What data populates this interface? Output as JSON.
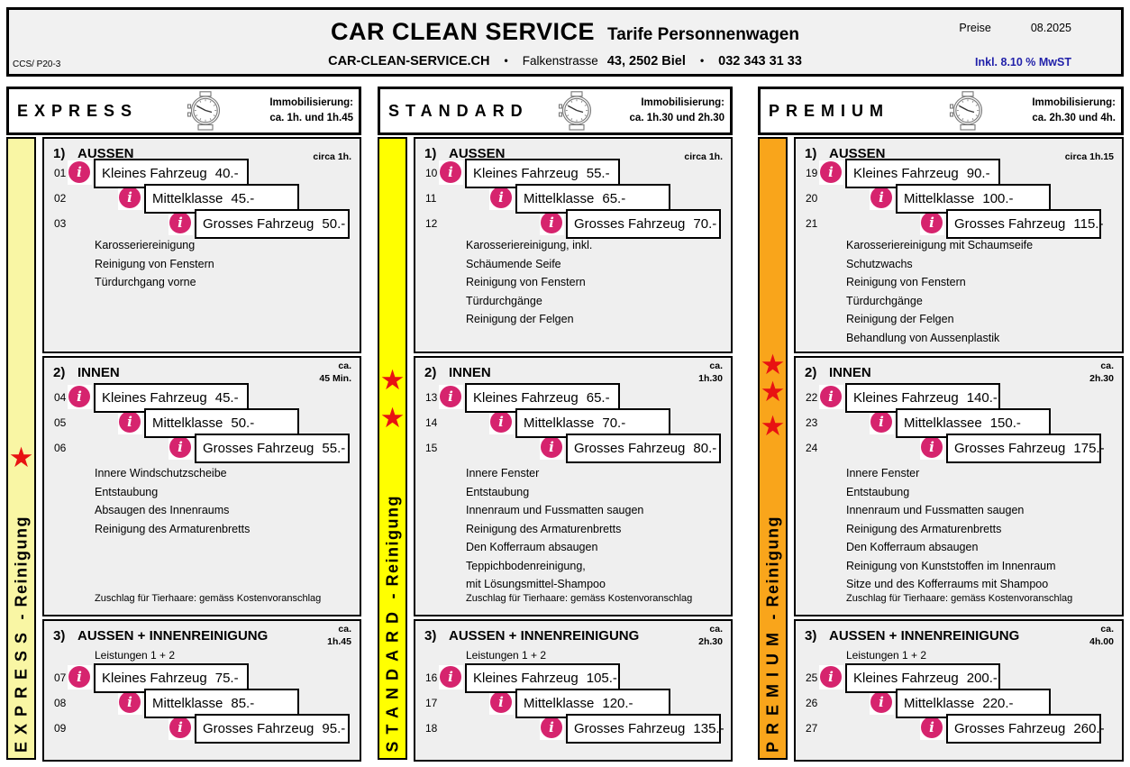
{
  "header": {
    "code": "CCS/ P20-3",
    "title": "CAR CLEAN SERVICE",
    "subtitle": "Tarife Personnenwagen",
    "website": "CAR-CLEAN-SERVICE.CH",
    "bullet": "•",
    "street": "Falkenstrasse",
    "address": "43, 2502 Biel",
    "phone": "032 343 31 33",
    "price_label": "Preise",
    "price_date": "08.2025",
    "vat_note": "Inkl. 8.10 % MwST"
  },
  "icons": {
    "info": "i",
    "star": "★"
  },
  "colors": {
    "info_icon": "#D6246E",
    "star": "#E81212",
    "vat_text": "#2222AA",
    "header_bg": "#F1F1F1",
    "section_bg": "#EFEFEF",
    "express_bar": "#F9F6A4",
    "standard_bar": "#FFFF00",
    "premium_bar": "#F9A51B"
  },
  "panels": [
    {
      "id": "express",
      "title": "EXPRESS",
      "immob_label": "Immobilisierung:",
      "immob_time": "ca. 1h. und 1h.45",
      "sidebar": {
        "brand": "EXPRESS",
        "suffix": " - Reinigung",
        "color": "#F9F6A4",
        "stars": 1
      },
      "sections": [
        {
          "no": "1)",
          "name": "AUSSEN",
          "ca": "",
          "duration": "circa 1h.",
          "rows": [
            {
              "nr": "01",
              "vehicle": "Kleines Fahrzeug",
              "price": "40.-"
            },
            {
              "nr": "02",
              "vehicle": "Mittelklasse",
              "price": "45.-"
            },
            {
              "nr": "03",
              "vehicle": "Grosses Fahrzeug",
              "price": "50.-"
            }
          ],
          "features": [
            "Karosseriereinigung",
            "Reinigung von Fenstern",
            "Türdurchgang vorne"
          ]
        },
        {
          "no": "2)",
          "name": "INNEN",
          "ca": "ca.",
          "duration": "45 Min.",
          "rows": [
            {
              "nr": "04",
              "vehicle": "Kleines Fahrzeug",
              "price": "45.-"
            },
            {
              "nr": "05",
              "vehicle": "Mittelklasse",
              "price": "50.-"
            },
            {
              "nr": "06",
              "vehicle": "Grosses Fahrzeug",
              "price": "55.-"
            }
          ],
          "features": [
            "Innere Windschutzscheibe",
            "Entstaubung",
            "Absaugen des Innenraums",
            "Reinigung des Armaturenbretts"
          ],
          "footnote": "Zuschlag für Tierhaare: gemäss Kostenvoranschlag"
        },
        {
          "no": "3)",
          "name": "AUSSEN + INNENREINIGUNG",
          "ca": "ca.",
          "duration": "1h.45",
          "subtitle": "Leistungen 1 + 2",
          "rows": [
            {
              "nr": "07",
              "vehicle": "Kleines Fahrzeug",
              "price": "75.-"
            },
            {
              "nr": "08",
              "vehicle": "Mittelklasse",
              "price": "85.-"
            },
            {
              "nr": "09",
              "vehicle": "Grosses Fahrzeug",
              "price": "95.-"
            }
          ]
        }
      ]
    },
    {
      "id": "standard",
      "title": "STANDARD",
      "immob_label": "Immobilisierung:",
      "immob_time": "ca. 1h.30 und 2h.30",
      "sidebar": {
        "brand": "STANDARD",
        "suffix": " - Reinigung",
        "color": "#FFFF00",
        "stars": 2
      },
      "sections": [
        {
          "no": "1)",
          "name": "AUSSEN",
          "ca": "",
          "duration": "circa 1h.",
          "rows": [
            {
              "nr": "10",
              "vehicle": "Kleines Fahrzeug",
              "price": "55.-"
            },
            {
              "nr": "11",
              "vehicle": "Mittelklasse",
              "price": "65.-"
            },
            {
              "nr": "12",
              "vehicle": "Grosses Fahrzeug",
              "price": "70.-"
            }
          ],
          "features": [
            "Karosseriereinigung, inkl.",
            "Schäumende Seife",
            "Reinigung von Fenstern",
            "Türdurchgänge",
            "Reinigung der Felgen"
          ]
        },
        {
          "no": "2)",
          "name": "INNEN",
          "ca": "ca.",
          "duration": "1h.30",
          "rows": [
            {
              "nr": "13",
              "vehicle": "Kleines Fahrzeug",
              "price": "65.-"
            },
            {
              "nr": "14",
              "vehicle": "Mittelklasse",
              "price": "70.-"
            },
            {
              "nr": "15",
              "vehicle": "Grosses Fahrzeug",
              "price": "80.-"
            }
          ],
          "features": [
            "Innere Fenster",
            "Entstaubung",
            "Innenraum und Fussmatten saugen",
            "Reinigung des Armaturenbretts",
            "Den Kofferraum absaugen",
            "Teppichbodenreinigung,",
            "mit Lösungsmittel-Shampoo"
          ],
          "footnote": "Zuschlag für Tierhaare: gemäss Kostenvoranschlag"
        },
        {
          "no": "3)",
          "name": "AUSSEN + INNENREINIGUNG",
          "ca": "ca.",
          "duration": "2h.30",
          "subtitle": "Leistungen 1 + 2",
          "rows": [
            {
              "nr": "16",
              "vehicle": "Kleines Fahrzeug",
              "price": "105.-"
            },
            {
              "nr": "17",
              "vehicle": "Mittelklasse",
              "price": "120.-"
            },
            {
              "nr": "18",
              "vehicle": "Grosses Fahrzeug",
              "price": "135.-"
            }
          ]
        }
      ]
    },
    {
      "id": "premium",
      "title": "PREMIUM",
      "immob_label": "Immobilisierung:",
      "immob_time": "ca. 2h.30 und  4h.",
      "sidebar": {
        "brand": "PREMIUM",
        "suffix": " - Reinigung",
        "color": "#F9A51B",
        "stars": 3
      },
      "sections": [
        {
          "no": "1)",
          "name": "AUSSEN",
          "ca": "",
          "duration": "circa 1h.15",
          "rows": [
            {
              "nr": "19",
              "vehicle": "Kleines Fahrzeug",
              "price": "90.-"
            },
            {
              "nr": "20",
              "vehicle": "Mittelklasse",
              "price": "100.-"
            },
            {
              "nr": "21",
              "vehicle": "Grosses Fahrzeug",
              "price": "115.-"
            }
          ],
          "features": [
            "Karosseriereinigung mit Schaumseife",
            "Schutzwachs",
            "Reinigung von Fenstern",
            "Türdurchgänge",
            "Reinigung der Felgen",
            "Behandlung von Aussenplastik"
          ]
        },
        {
          "no": "2)",
          "name": "INNEN",
          "ca": "ca.",
          "duration": "2h.30",
          "rows": [
            {
              "nr": "22",
              "vehicle": "Kleines Fahrzeug",
              "price": "140.-"
            },
            {
              "nr": "23",
              "vehicle": "Mittelklassee",
              "price": "150.-"
            },
            {
              "nr": "24",
              "vehicle": "Grosses Fahrzeug",
              "price": "175.-"
            }
          ],
          "features": [
            "Innere Fenster",
            "Entstaubung",
            "Innenraum und Fussmatten saugen",
            "Reinigung des Armaturenbretts",
            "Den Kofferraum absaugen",
            "Reinigung von Kunststoffen im Innenraum",
            "Sitze und des Kofferraums mit Shampoo"
          ],
          "footnote": "Zuschlag für Tierhaare: gemäss Kostenvoranschlag"
        },
        {
          "no": "3)",
          "name": "AUSSEN + INNENREINIGUNG",
          "ca": "ca.",
          "duration": "4h.00",
          "subtitle": "Leistungen 1 + 2",
          "rows": [
            {
              "nr": "25",
              "vehicle": "Kleines Fahrzeug",
              "price": "200.-"
            },
            {
              "nr": "26",
              "vehicle": "Mittelklasse",
              "price": "220.-"
            },
            {
              "nr": "27",
              "vehicle": "Grosses Fahrzeug",
              "price": "260.-"
            }
          ]
        }
      ]
    }
  ]
}
